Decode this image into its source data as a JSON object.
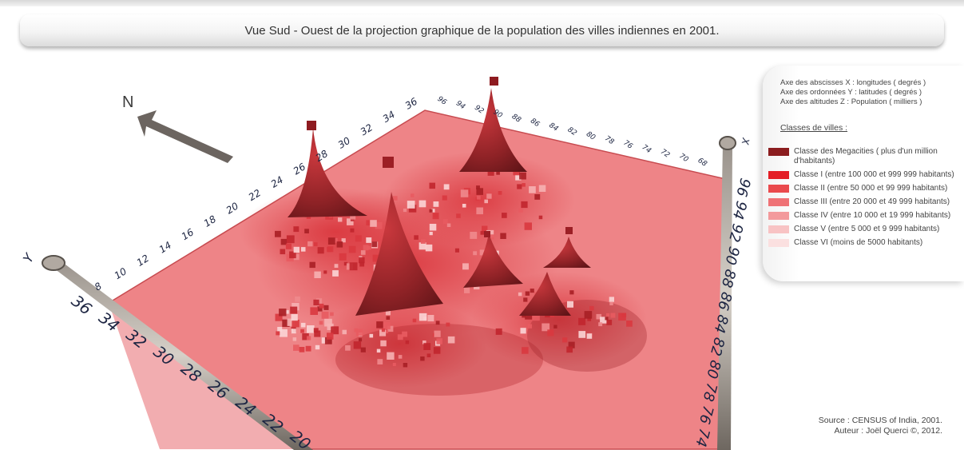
{
  "title": "Vue Sud - Ouest de la projection graphique de la population des villes indiennes en 2001.",
  "north_label": "N",
  "axes": {
    "x_description": "Axe des abscisses X : longitudes ( degrés )",
    "y_description": "Axe des ordonnées Y : latitudes ( degrés )",
    "z_description": "Axe des altitudes Z : Population ( milliers )",
    "x_label": "X",
    "y_label": "Y"
  },
  "legend": {
    "heading": "Classes de villes :",
    "classes": [
      {
        "label": "Classe des Megacities ( plus d'un million d'habitants)",
        "color": "#8b1d1f"
      },
      {
        "label": "Classe I (entre 100 000 et 999 999 habitants)",
        "color": "#e41e26"
      },
      {
        "label": "Classe II (entre 50 000 et 99 999 habitants)",
        "color": "#ea4a4d"
      },
      {
        "label": "Classe III (entre 20 000 et 49 999 habitants)",
        "color": "#ef7276"
      },
      {
        "label": "Classe IV (entre 10 000 et 19 999 habitants)",
        "color": "#f39a9c"
      },
      {
        "label": "Classe V (entre 5 000 et 9 999 habitants)",
        "color": "#f8c3c4"
      },
      {
        "label": "Classe VI (moins de 5000 habitants)",
        "color": "#fbe0e0"
      }
    ]
  },
  "source": "Source : CENSUS of India, 2001.",
  "author": "Auteur : Joël Querci ©, 2012.",
  "chart_data": {
    "type": "surface3d",
    "view": "Sud-Ouest",
    "x_ticks_front": [
      "74",
      "76",
      "78",
      "80",
      "82",
      "84",
      "86",
      "88",
      "90",
      "92",
      "94",
      "96"
    ],
    "y_ticks_front": [
      "36",
      "34",
      "32",
      "30",
      "28",
      "26",
      "24",
      "22",
      "20"
    ],
    "y_ticks_back": [
      "8",
      "10",
      "12",
      "14",
      "16",
      "18",
      "20",
      "22",
      "24",
      "26",
      "28",
      "30",
      "32",
      "34",
      "36"
    ],
    "x_ticks_back": [
      "96",
      "94",
      "92",
      "90",
      "88",
      "86",
      "84",
      "82",
      "80",
      "78",
      "76",
      "74",
      "72",
      "70",
      "68"
    ],
    "peaks": [
      {
        "longitude": 77.2,
        "latitude": 28.6,
        "class": "Classe des Megacities"
      },
      {
        "longitude": 72.8,
        "latitude": 19.0,
        "class": "Classe des Megacities"
      },
      {
        "longitude": 88.3,
        "latitude": 22.5,
        "class": "Classe des Megacities"
      },
      {
        "longitude": 80.2,
        "latitude": 13.1,
        "class": "Classe des Megacities"
      },
      {
        "longitude": 78.5,
        "latitude": 17.4,
        "class": "Classe des Megacities"
      },
      {
        "longitude": 77.6,
        "latitude": 12.9,
        "class": "Classe des Megacities"
      }
    ]
  }
}
